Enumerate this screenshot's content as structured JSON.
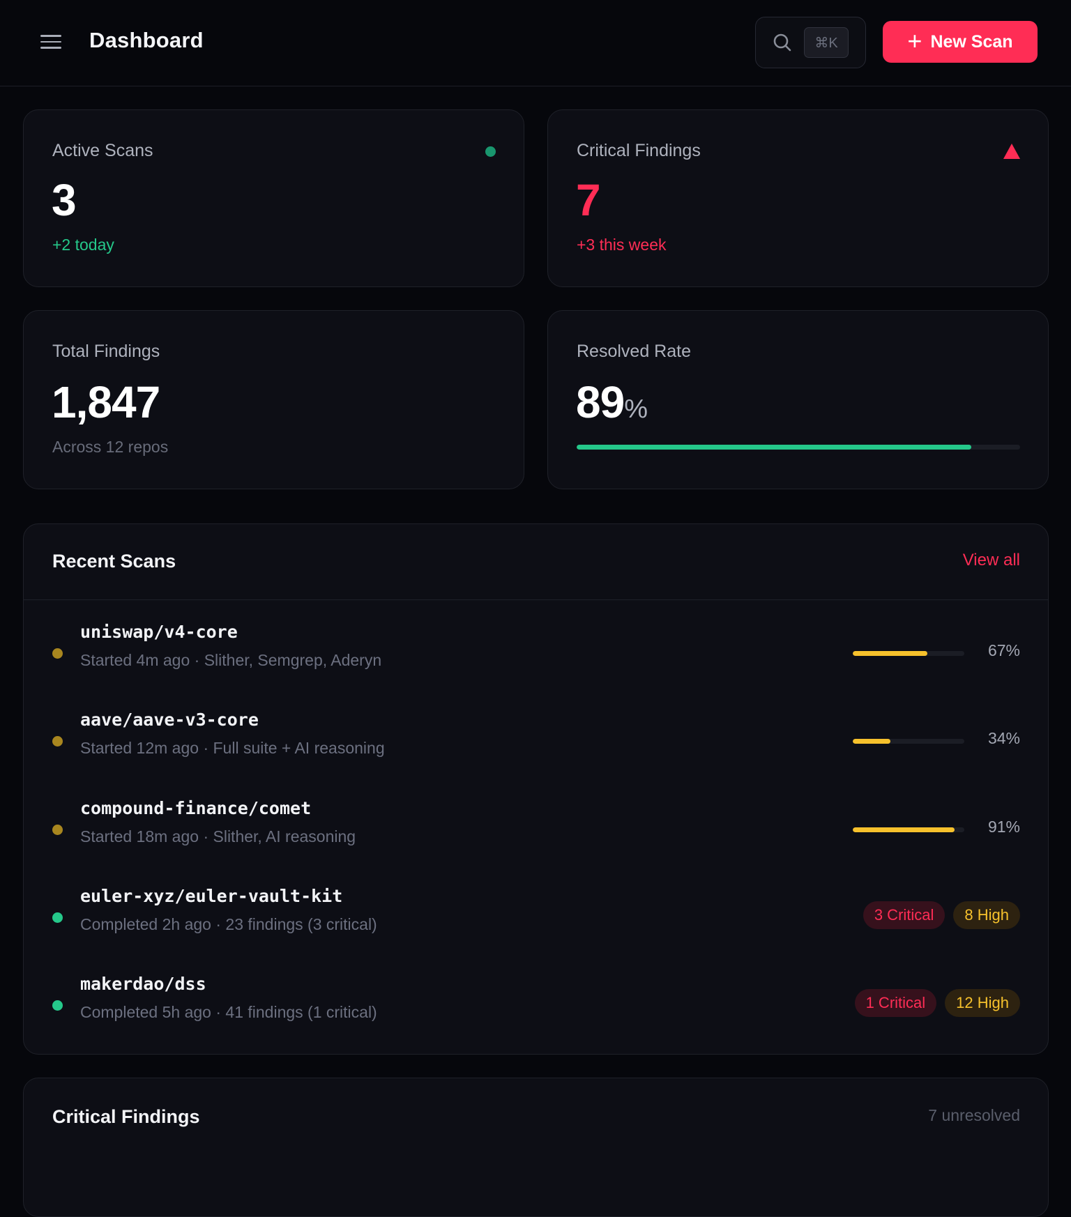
{
  "header": {
    "title": "Dashboard",
    "search_shortcut": "⌘K",
    "new_scan_label": "New Scan"
  },
  "stats": {
    "active_scans": {
      "label": "Active Scans",
      "value": "3",
      "sub": "+2 today"
    },
    "critical_findings": {
      "label": "Critical Findings",
      "value": "7",
      "sub": "+3 this week"
    },
    "total_findings": {
      "label": "Total Findings",
      "value": "1,847",
      "sub": "Across 12 repos"
    },
    "resolved_rate": {
      "label": "Resolved Rate",
      "value": "89",
      "unit": "%",
      "progress": 0.89
    }
  },
  "recent_scans": {
    "title": "Recent Scans",
    "view_all": "View all",
    "rows": [
      {
        "name": "uniswap/v4-core",
        "meta": "Started 4m ago · Slither, Semgrep, Aderyn",
        "status": "running",
        "progress": 0.67,
        "pct": "67%"
      },
      {
        "name": "aave/aave-v3-core",
        "meta": "Started 12m ago · Full suite + AI reasoning",
        "status": "running",
        "progress": 0.34,
        "pct": "34%"
      },
      {
        "name": "compound-finance/comet",
        "meta": "Started 18m ago · Slither, AI reasoning",
        "status": "running",
        "progress": 0.91,
        "pct": "91%"
      },
      {
        "name": "euler-xyz/euler-vault-kit",
        "meta": "Completed 2h ago · 23 findings (3 critical)",
        "status": "completed",
        "critical": "3 Critical",
        "high": "8 High"
      },
      {
        "name": "makerdao/dss",
        "meta": "Completed 5h ago · 41 findings (1 critical)",
        "status": "completed",
        "critical": "1 Critical",
        "high": "12 High"
      }
    ]
  },
  "critical_section": {
    "title": "Critical Findings",
    "right_text": "7 unresolved"
  },
  "colors": {
    "accent": "#ff2d55",
    "success": "#25c88a",
    "warning": "#f6c12c",
    "running_dot": "#a8861f",
    "completed_dot": "#25c88a"
  }
}
